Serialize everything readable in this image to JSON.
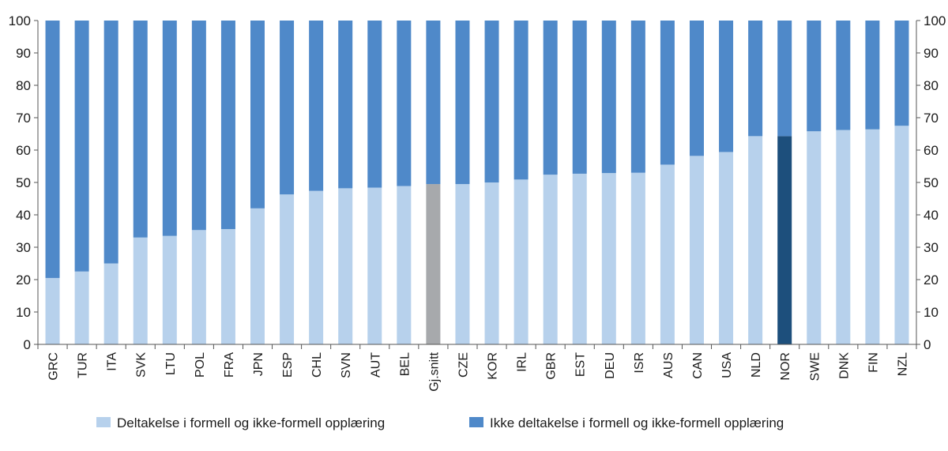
{
  "chart_data": {
    "type": "bar",
    "stacked": true,
    "percent_stacked": true,
    "categories": [
      "GRC",
      "TUR",
      "ITA",
      "SVK",
      "LTU",
      "POL",
      "FRA",
      "JPN",
      "ESP",
      "CHL",
      "SVN",
      "AUT",
      "BEL",
      "Gj.snitt",
      "CZE",
      "KOR",
      "IRL",
      "GBR",
      "EST",
      "DEU",
      "ISR",
      "AUS",
      "CAN",
      "USA",
      "NLD",
      "NOR",
      "SWE",
      "DNK",
      "FIN",
      "NZL"
    ],
    "series": [
      {
        "name": "Deltakelse i formell og ikke-formell opplæring",
        "values": [
          20.5,
          22.5,
          25,
          33,
          33.5,
          35.3,
          35.6,
          42,
          46.3,
          47.4,
          48.2,
          48.4,
          48.9,
          49.5,
          49.5,
          50,
          50.9,
          52.4,
          52.7,
          52.9,
          53,
          55.5,
          58.2,
          59.4,
          64.3,
          64.3,
          65.8,
          66.2,
          66.4,
          67.5
        ]
      },
      {
        "name": "Ikke deltakelse i formell og ikke-formell opplæring",
        "values": [
          79.5,
          77.5,
          75,
          67,
          66.5,
          64.7,
          64.4,
          58,
          53.7,
          52.6,
          51.8,
          51.6,
          51.1,
          50.5,
          50.5,
          50,
          49.1,
          47.6,
          47.3,
          47.1,
          47,
          44.5,
          41.8,
          40.6,
          35.7,
          35.7,
          34.2,
          33.8,
          33.6,
          32.5
        ]
      }
    ],
    "highlight": [
      {
        "category": "Gj.snitt",
        "series": 0,
        "color": "#a7a9ac"
      },
      {
        "category": "NOR",
        "series": 0,
        "color": "#1d4f7c"
      }
    ],
    "yticks": [
      0,
      10,
      20,
      30,
      40,
      50,
      60,
      70,
      80,
      90,
      100
    ],
    "ylim": [
      0,
      100
    ],
    "y_axis_both_sides": true,
    "grid": false,
    "legend_position": "bottom",
    "colors": {
      "series0": "#b7d1ec",
      "series1": "#4f89c9",
      "axis": "#555555"
    },
    "title": "",
    "xlabel": "",
    "ylabel": ""
  }
}
